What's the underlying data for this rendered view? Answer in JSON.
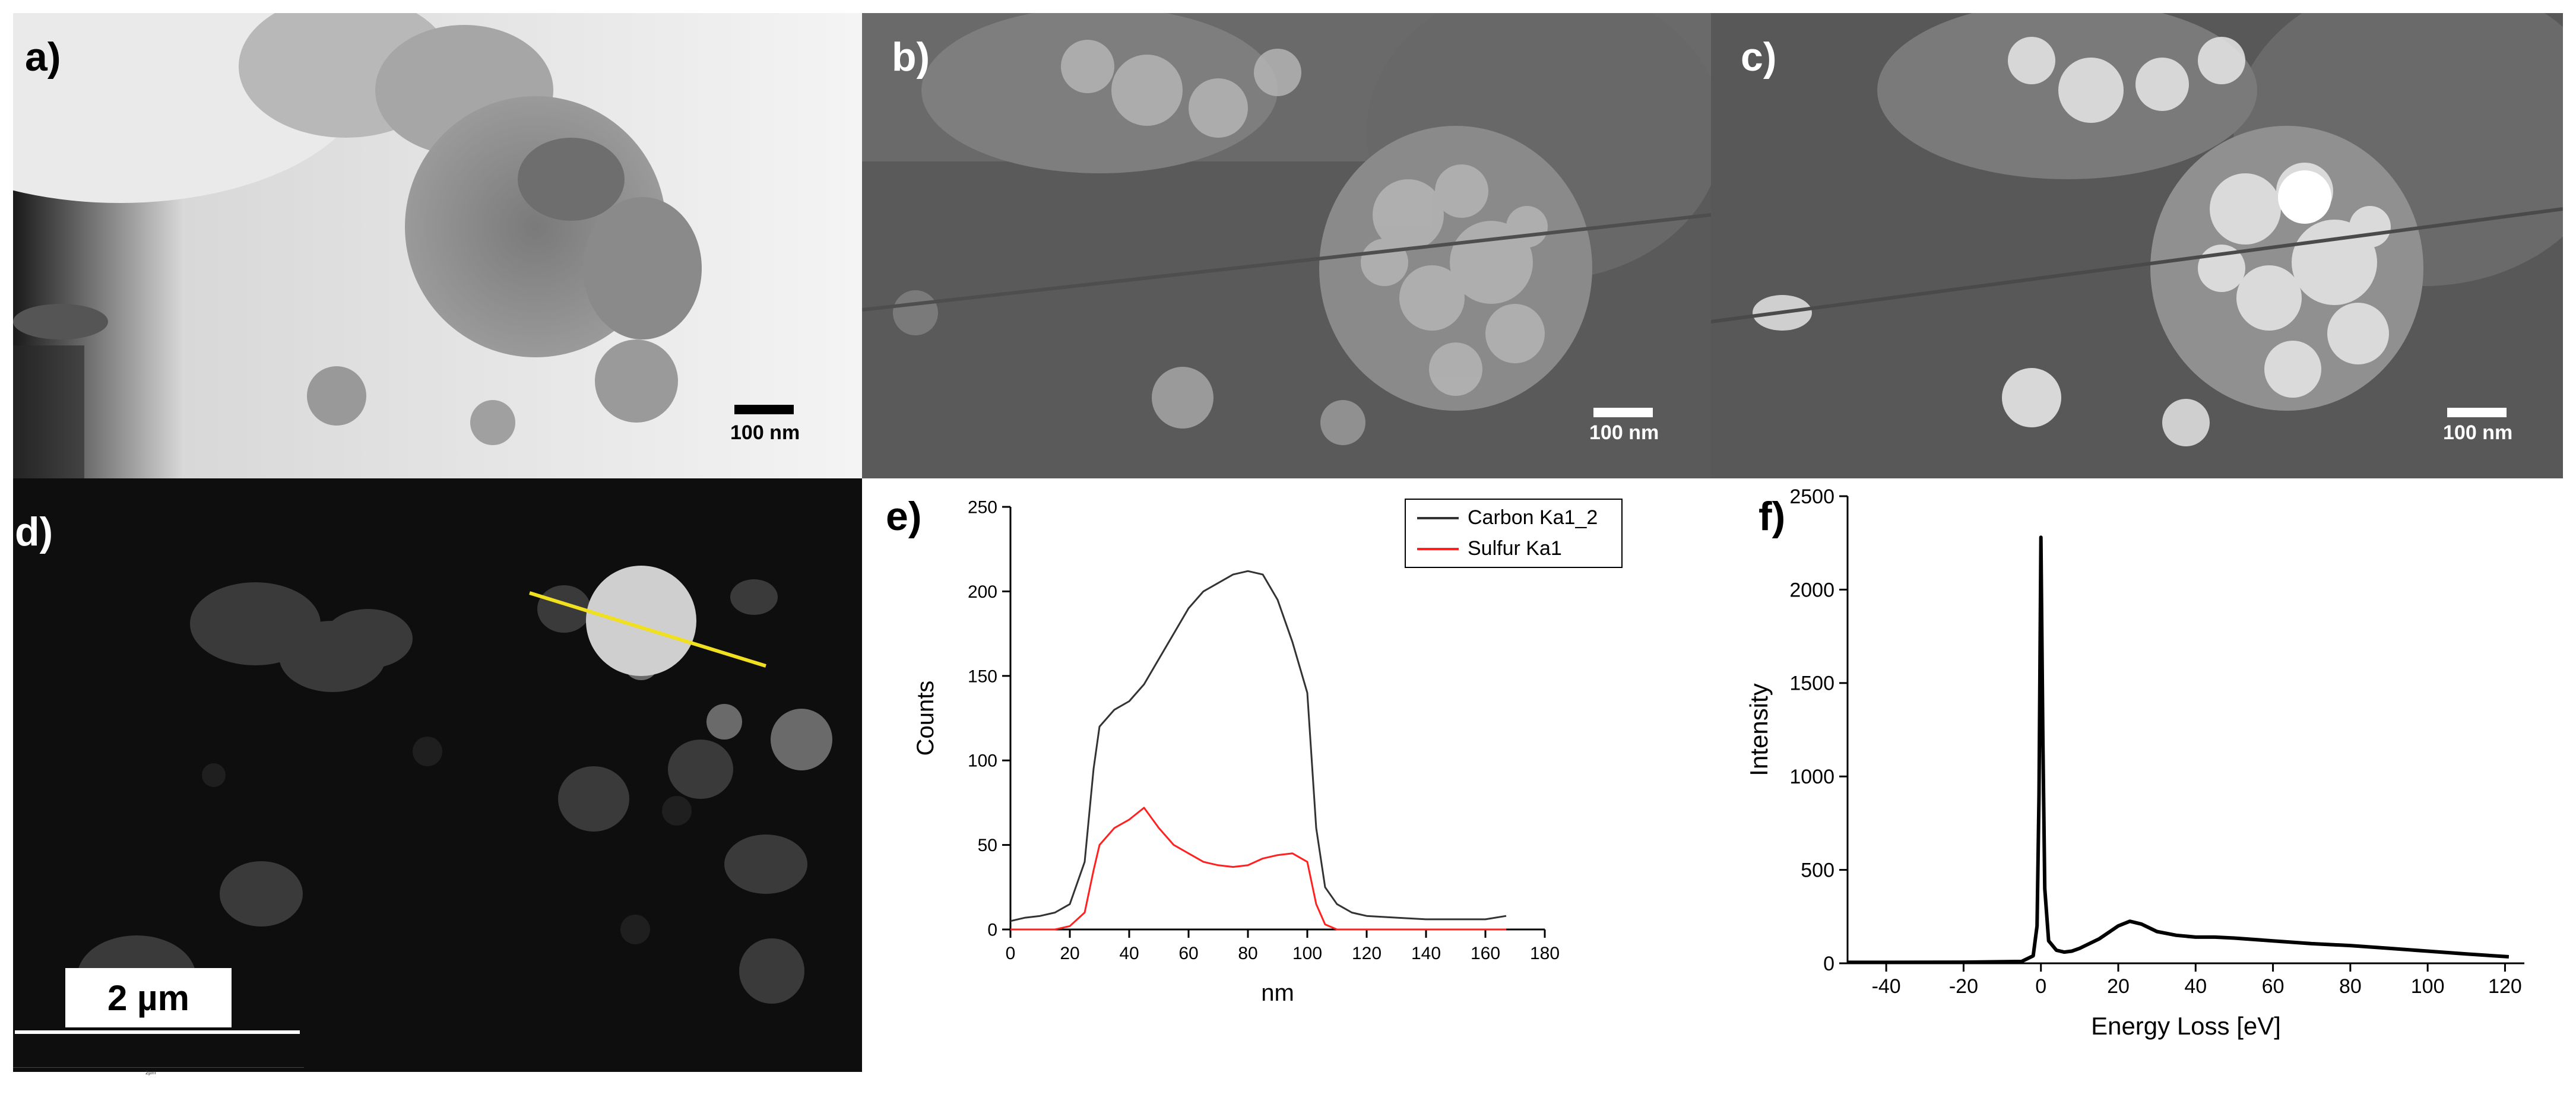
{
  "panels": {
    "a": {
      "label": "a)",
      "scale": "100 nm"
    },
    "b": {
      "label": "b)",
      "scale": "100 nm"
    },
    "c": {
      "label": "c)",
      "scale": "100 nm"
    },
    "d": {
      "label": "d)",
      "scale": "2 µm",
      "ruler_text": "2µm"
    },
    "e": {
      "label": "e)"
    },
    "f": {
      "label": "f)"
    }
  },
  "colors": {
    "carbon": "#333333",
    "sulfur": "#ff2020",
    "linescan": "#f0e020",
    "eels": "#000000"
  },
  "chart_data": [
    {
      "panel": "e",
      "type": "line",
      "xlabel": "nm",
      "ylabel": "Counts",
      "xlim": [
        0,
        180
      ],
      "ylim": [
        0,
        250
      ],
      "xticks": [
        0,
        20,
        40,
        60,
        80,
        100,
        120,
        140,
        160,
        180
      ],
      "yticks": [
        0,
        50,
        100,
        150,
        200,
        250
      ],
      "legend_position": "top-right",
      "x": [
        0,
        5,
        10,
        15,
        20,
        25,
        28,
        30,
        35,
        40,
        45,
        50,
        55,
        60,
        65,
        70,
        75,
        80,
        85,
        90,
        95,
        100,
        103,
        106,
        110,
        115,
        120,
        130,
        140,
        150,
        160,
        167
      ],
      "series": [
        {
          "name": "Carbon Ka1_2",
          "color": "#333333",
          "values": [
            5,
            7,
            8,
            10,
            15,
            40,
            95,
            120,
            130,
            135,
            145,
            160,
            175,
            190,
            200,
            205,
            210,
            212,
            210,
            195,
            170,
            140,
            60,
            25,
            15,
            10,
            8,
            7,
            6,
            6,
            6,
            8
          ]
        },
        {
          "name": "Sulfur Ka1",
          "color": "#ff2020",
          "values": [
            0,
            0,
            0,
            0,
            2,
            10,
            35,
            50,
            60,
            65,
            72,
            60,
            50,
            45,
            40,
            38,
            37,
            38,
            42,
            44,
            45,
            40,
            15,
            3,
            0,
            0,
            0,
            0,
            0,
            0,
            0,
            0
          ]
        }
      ]
    },
    {
      "panel": "f",
      "type": "line",
      "xlabel": "Energy Loss [eV]",
      "ylabel": "Intensity",
      "xlim": [
        -50,
        125
      ],
      "ylim": [
        0,
        2500
      ],
      "xticks": [
        -40,
        -20,
        0,
        20,
        40,
        60,
        80,
        100,
        120
      ],
      "yticks": [
        0,
        500,
        1000,
        1500,
        2000,
        2500
      ],
      "x": [
        -50,
        -40,
        -20,
        -5,
        -2,
        -1,
        -0.5,
        0,
        0.5,
        1,
        2,
        4,
        6,
        8,
        10,
        15,
        20,
        23,
        26,
        30,
        35,
        40,
        45,
        50,
        60,
        70,
        80,
        90,
        100,
        110,
        121
      ],
      "series": [
        {
          "name": "",
          "color": "#000000",
          "values": [
            5,
            5,
            6,
            10,
            40,
            200,
            900,
            2280,
            1200,
            400,
            120,
            70,
            60,
            65,
            80,
            130,
            200,
            225,
            210,
            170,
            150,
            140,
            140,
            135,
            120,
            105,
            95,
            80,
            65,
            50,
            35
          ]
        }
      ]
    }
  ]
}
